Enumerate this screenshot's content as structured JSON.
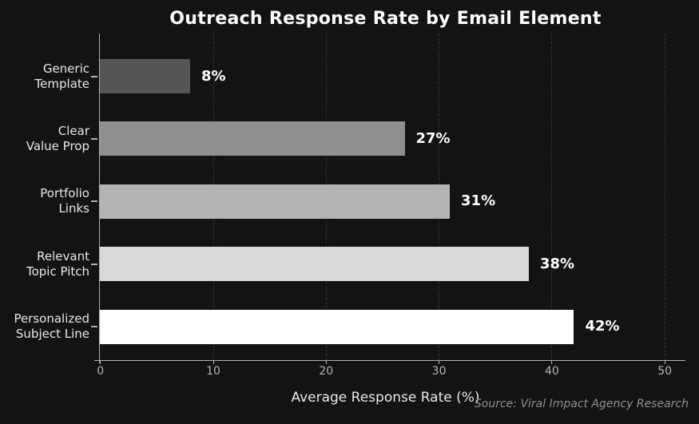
{
  "chart_data": {
    "type": "bar",
    "orientation": "horizontal",
    "title": "Outreach Response Rate by Email Element",
    "xlabel": "Average Response Rate (%)",
    "source": "Source: Viral Impact Agency Research",
    "categories": [
      "Generic Template",
      "Clear Value Prop",
      "Portfolio Links",
      "Relevant Topic Pitch",
      "Personalized Subject Line"
    ],
    "category_lines": [
      [
        "Generic",
        "Template"
      ],
      [
        "Clear",
        "Value Prop"
      ],
      [
        "Portfolio",
        "Links"
      ],
      [
        "Relevant",
        "Topic Pitch"
      ],
      [
        "Personalized",
        "Subject Line"
      ]
    ],
    "values": [
      8,
      27,
      31,
      38,
      42
    ],
    "value_labels": [
      "8%",
      "27%",
      "31%",
      "38%",
      "42%"
    ],
    "bar_colors": [
      "#555555",
      "#8f8f8f",
      "#b4b4b4",
      "#d9d9d9",
      "#ffffff"
    ],
    "x_ticks": [
      0,
      10,
      20,
      30,
      40,
      50
    ],
    "x_tick_labels": [
      "0",
      "10",
      "20",
      "30",
      "40",
      "50"
    ],
    "xlim": [
      0,
      50
    ],
    "grid": "vertical-dashed"
  },
  "colors": {
    "background": "#131313",
    "title": "#ffffff",
    "category_label": "#e8e8e8",
    "value_label": "#ffffff",
    "tick_label": "#b5b5b5",
    "axis_label": "#e8e8e8",
    "source": "#8f8f8f",
    "spine": "#b0b0b0",
    "gridline": "#333333"
  }
}
